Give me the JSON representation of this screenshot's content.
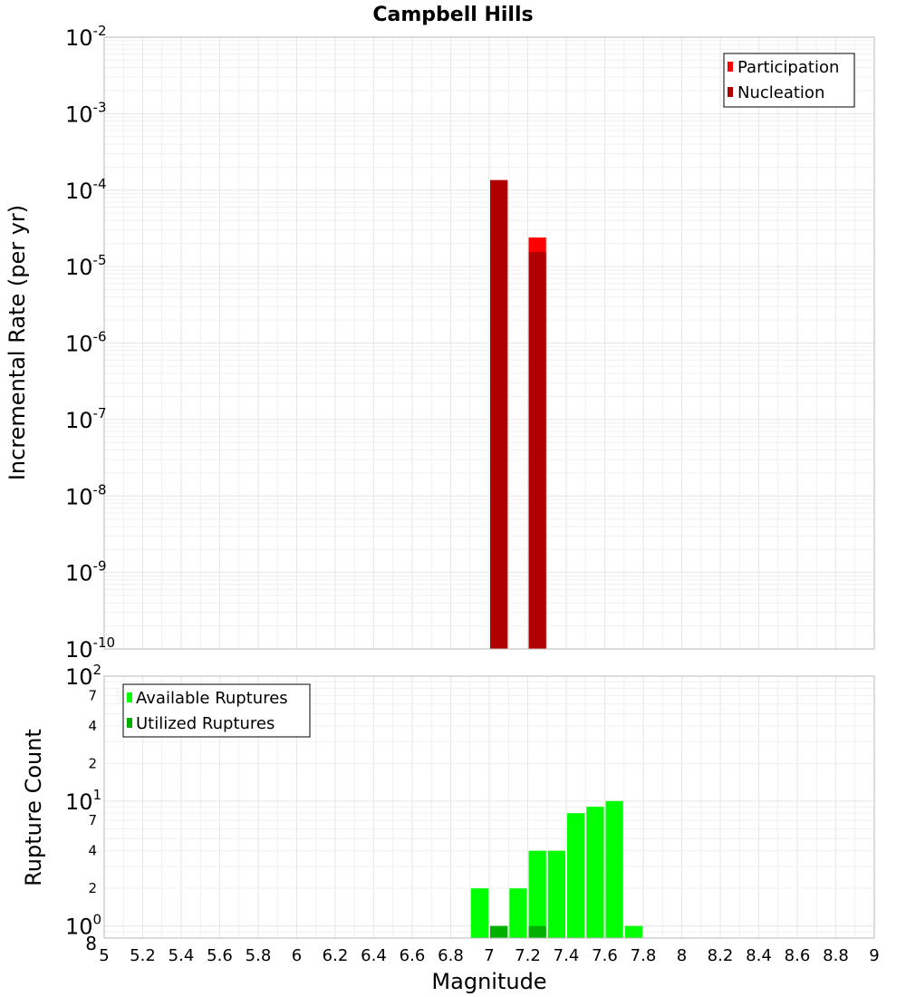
{
  "chart_data": [
    {
      "type": "bar",
      "title": "Campbell Hills",
      "xlabel": "Magnitude",
      "ylabel": "Incremental Rate (per yr)",
      "yscale": "log",
      "ylim": [
        1e-10,
        0.01
      ],
      "xlim": [
        5,
        9
      ],
      "bin_width": 0.1,
      "legend_position": "top-right",
      "series": [
        {
          "name": "Participation",
          "color": "#ff0000",
          "points": [
            {
              "x": 7.05,
              "y": 0.000135
            },
            {
              "x": 7.25,
              "y": 2.4e-05
            }
          ]
        },
        {
          "name": "Nucleation",
          "color": "#b00000",
          "points": [
            {
              "x": 7.05,
              "y": 0.000135
            },
            {
              "x": 7.25,
              "y": 1.55e-05
            }
          ]
        }
      ]
    },
    {
      "type": "bar",
      "title": "",
      "xlabel": "Magnitude",
      "ylabel": "Rupture Count",
      "yscale": "log",
      "ylim": [
        0.8,
        100
      ],
      "xlim": [
        5,
        9
      ],
      "bin_width": 0.1,
      "legend_position": "top-left",
      "series": [
        {
          "name": "Available Ruptures",
          "color": "#00ff00",
          "points": [
            {
              "x": 6.95,
              "y": 2
            },
            {
              "x": 7.05,
              "y": 1
            },
            {
              "x": 7.15,
              "y": 2
            },
            {
              "x": 7.25,
              "y": 4
            },
            {
              "x": 7.35,
              "y": 4
            },
            {
              "x": 7.45,
              "y": 8
            },
            {
              "x": 7.55,
              "y": 9
            },
            {
              "x": 7.65,
              "y": 10
            },
            {
              "x": 7.75,
              "y": 1
            }
          ]
        },
        {
          "name": "Utilized Ruptures",
          "color": "#00b000",
          "points": [
            {
              "x": 7.05,
              "y": 1
            },
            {
              "x": 7.25,
              "y": 1
            }
          ]
        }
      ]
    }
  ],
  "x_tick_labels": [
    "5",
    "5.2",
    "5.4",
    "5.6",
    "5.8",
    "6",
    "6.2",
    "6.4",
    "6.6",
    "6.8",
    "7",
    "7.2",
    "7.4",
    "7.6",
    "7.8",
    "8",
    "8.2",
    "8.4",
    "8.6",
    "8.8",
    "9"
  ],
  "top_y_ticks": [
    {
      "base": "10",
      "exp": "-2"
    },
    {
      "base": "10",
      "exp": "-3"
    },
    {
      "base": "10",
      "exp": "-4"
    },
    {
      "base": "10",
      "exp": "-5"
    },
    {
      "base": "10",
      "exp": "-6"
    },
    {
      "base": "10",
      "exp": "-7"
    },
    {
      "base": "10",
      "exp": "-8"
    },
    {
      "base": "10",
      "exp": "-9"
    },
    {
      "base": "10",
      "exp": "-10"
    }
  ],
  "bottom_y_ticks": {
    "major": [
      {
        "base": "10",
        "exp": "2"
      },
      {
        "base": "10",
        "exp": "1"
      },
      {
        "base": "10",
        "exp": "0"
      }
    ],
    "minor": [
      "7",
      "4",
      "2",
      "7",
      "4",
      "2",
      "8"
    ]
  }
}
